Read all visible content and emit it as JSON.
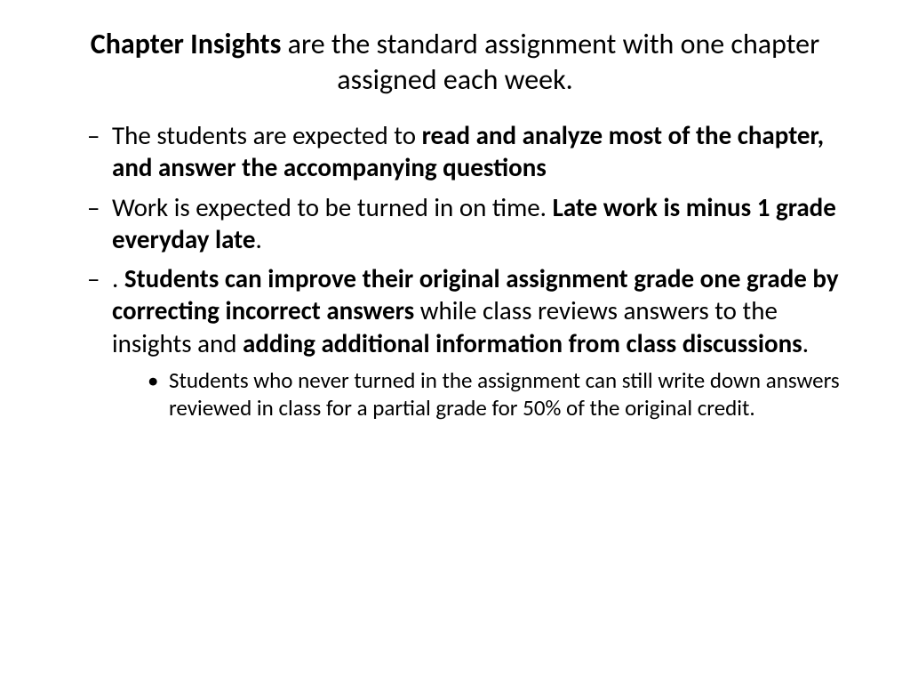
{
  "title": {
    "bold_lead": "Chapter Insights",
    "rest": " are the standard assignment with one chapter assigned each week."
  },
  "bullets": [
    {
      "pre": "The students are expected to ",
      "bold1": "read and analyze most of the chapter, and answer the accompanying questions",
      "mid": "",
      "bold2": "",
      "post": ""
    },
    {
      "pre": "Work is expected to be turned in on time.  ",
      "bold1": "Late work is minus 1 grade everyday late",
      "mid": ".",
      "bold2": "",
      "post": ""
    },
    {
      "pre": ".  ",
      "bold1": "Students can improve their original assignment grade one grade by correcting incorrect answers",
      "mid": " while class reviews answers to the insights and ",
      "bold2": "adding additional information from class discussions",
      "post": "."
    }
  ],
  "subbullet": "Students who never turned in the assignment can still write down answers reviewed in class for a partial grade  for 50% of the original credit."
}
